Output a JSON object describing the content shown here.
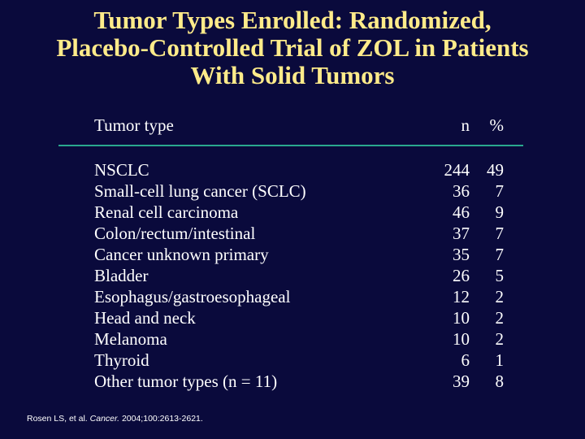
{
  "title": {
    "line1": "Tumor Types Enrolled: Randomized,",
    "line2": "Placebo-Controlled Trial of ZOL in Patients",
    "line3": "With Solid Tumors"
  },
  "table": {
    "headers": {
      "type": "Tumor type",
      "n": "n",
      "pct": "%"
    },
    "rows": [
      {
        "type": "NSCLC",
        "n": "244",
        "pct": "49"
      },
      {
        "type": "Small-cell lung cancer (SCLC)",
        "n": "36",
        "pct": "7"
      },
      {
        "type": "Renal cell carcinoma",
        "n": "46",
        "pct": "9"
      },
      {
        "type": "Colon/rectum/intestinal",
        "n": "37",
        "pct": "7"
      },
      {
        "type": "Cancer unknown primary",
        "n": "35",
        "pct": "7"
      },
      {
        "type": "Bladder",
        "n": "26",
        "pct": "5"
      },
      {
        "type": "Esophagus/gastroesophageal",
        "n": "12",
        "pct": "2"
      },
      {
        "type": "Head and neck",
        "n": "10",
        "pct": "2"
      },
      {
        "type": "Melanoma",
        "n": "10",
        "pct": "2"
      },
      {
        "type": "Thyroid",
        "n": "6",
        "pct": "1"
      },
      {
        "type": "Other tumor types (n = 11)",
        "n": "39",
        "pct": "8"
      }
    ]
  },
  "footnote": {
    "authors": "Rosen LS, et al.",
    "journal": "Cancer.",
    "citation": "2004;100:2613-2621."
  },
  "colors": {
    "background": "#0a0a3c",
    "title": "#ffeb8a",
    "text": "#ffffff",
    "rule": "#2aa88e"
  }
}
